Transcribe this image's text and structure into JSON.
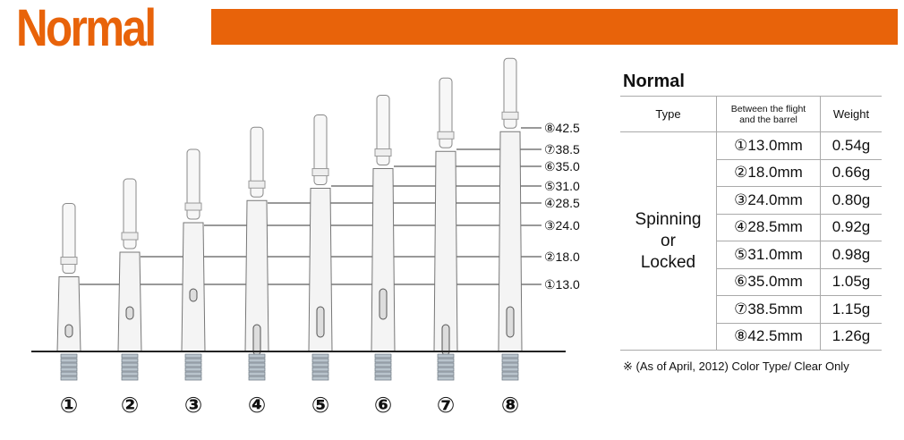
{
  "header": {
    "title": "Normal",
    "accent": "#e8630a"
  },
  "figure": {
    "shafts": [
      {
        "num": "①",
        "length": "13.0"
      },
      {
        "num": "②",
        "length": "18.0"
      },
      {
        "num": "③",
        "length": "24.0"
      },
      {
        "num": "④",
        "length": "28.5"
      },
      {
        "num": "⑤",
        "length": "31.0"
      },
      {
        "num": "⑥",
        "length": "35.0"
      },
      {
        "num": "⑦",
        "length": "38.5"
      },
      {
        "num": "⑧",
        "length": "42.5"
      }
    ]
  },
  "table": {
    "title": "Normal",
    "headers": {
      "type": "Type",
      "length_1": "Between the flight",
      "length_2": "and the barrel",
      "weight": "Weight"
    },
    "type_lines": [
      "Spinning",
      "or",
      "Locked"
    ],
    "rows": [
      {
        "length": "①13.0mm",
        "weight": "0.54g"
      },
      {
        "length": "②18.0mm",
        "weight": "0.66g"
      },
      {
        "length": "③24.0mm",
        "weight": "0.80g"
      },
      {
        "length": "④28.5mm",
        "weight": "0.92g"
      },
      {
        "length": "⑤31.0mm",
        "weight": "0.98g"
      },
      {
        "length": "⑥35.0mm",
        "weight": "1.05g"
      },
      {
        "length": "⑦38.5mm",
        "weight": "1.15g"
      },
      {
        "length": "⑧42.5mm",
        "weight": "1.26g"
      }
    ],
    "note": "※ (As of April, 2012) Color Type/ Clear Only"
  }
}
